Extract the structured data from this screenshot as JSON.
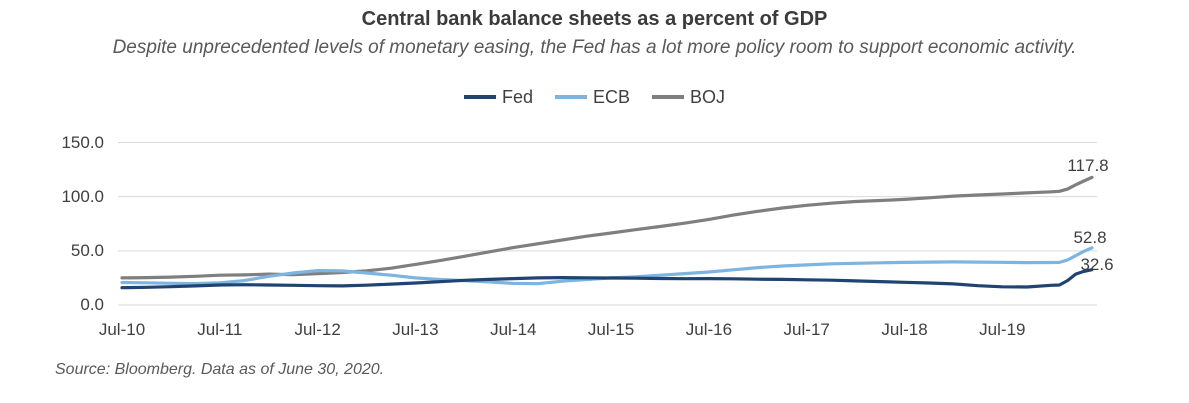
{
  "source_note": "Source: Bloomberg. Data as of June 30, 2020.",
  "colors": {
    "fed_line": "#1f4472",
    "ecb_line": "#7db4e0",
    "boj_line": "#7f7f7f",
    "gridline": "#d9d9d9",
    "title_text": "#3b3b3b",
    "subtitle_text": "#595959",
    "axis_text": "#404040"
  },
  "chart_data": {
    "type": "line",
    "title": "Central bank balance sheets as a percent of GDP",
    "subtitle": "Despite unprecedented levels of monetary easing, the Fed has a lot more policy room to support economic activity.",
    "xlabel": "",
    "ylabel": "",
    "ylim": [
      0,
      150
    ],
    "grid": "horizontal",
    "legend_position": "top-center",
    "x_unit": "months since Jul-2010",
    "x": [
      0,
      3,
      6,
      9,
      12,
      15,
      18,
      21,
      24,
      27,
      30,
      33,
      36,
      39,
      42,
      45,
      48,
      51,
      54,
      57,
      60,
      63,
      66,
      69,
      72,
      75,
      78,
      81,
      84,
      87,
      90,
      93,
      96,
      99,
      102,
      105,
      108,
      111,
      114,
      115,
      116,
      117,
      118,
      119
    ],
    "x_ticks": [
      {
        "label": "Jul-10",
        "month": 0
      },
      {
        "label": "Jul-11",
        "month": 12
      },
      {
        "label": "Jul-12",
        "month": 24
      },
      {
        "label": "Jul-13",
        "month": 36
      },
      {
        "label": "Jul-14",
        "month": 48
      },
      {
        "label": "Jul-15",
        "month": 60
      },
      {
        "label": "Jul-16",
        "month": 72
      },
      {
        "label": "Jul-17",
        "month": 84
      },
      {
        "label": "Jul-18",
        "month": 96
      },
      {
        "label": "Jul-19",
        "month": 108
      }
    ],
    "y_ticks": [
      {
        "label": "0.0",
        "value": 0
      },
      {
        "label": "50.0",
        "value": 50
      },
      {
        "label": "100.0",
        "value": 100
      },
      {
        "label": "150.0",
        "value": 150
      }
    ],
    "series": [
      {
        "name": "Fed",
        "color": "#1f4472",
        "end_label": "32.6",
        "end_value": 32.6,
        "values": [
          16.0,
          16.3,
          16.9,
          17.6,
          18.5,
          18.7,
          18.5,
          18.2,
          17.8,
          17.6,
          18.3,
          19.3,
          20.3,
          21.5,
          22.8,
          23.6,
          24.4,
          25.0,
          25.3,
          25.1,
          24.9,
          24.7,
          24.5,
          24.3,
          24.4,
          24.2,
          23.8,
          23.6,
          23.3,
          22.9,
          22.2,
          21.6,
          21.0,
          20.3,
          19.5,
          17.8,
          16.8,
          16.6,
          18.2,
          18.5,
          22.5,
          28.5,
          31.0,
          32.6
        ]
      },
      {
        "name": "ECB",
        "color": "#7db4e0",
        "end_label": "52.8",
        "end_value": 52.8,
        "values": [
          20.8,
          20.5,
          20.0,
          19.8,
          20.5,
          22.5,
          26.5,
          29.5,
          31.8,
          31.5,
          29.5,
          27.5,
          25.0,
          23.5,
          22.5,
          21.3,
          19.9,
          19.7,
          22.0,
          23.5,
          25.0,
          26.0,
          27.5,
          29.0,
          30.5,
          32.5,
          34.5,
          36.0,
          37.0,
          38.0,
          38.5,
          39.0,
          39.3,
          39.6,
          39.8,
          39.6,
          39.4,
          39.1,
          39.2,
          39.3,
          41.5,
          45.5,
          49.5,
          52.8
        ]
      },
      {
        "name": "BOJ",
        "color": "#7f7f7f",
        "end_label": "117.8",
        "end_value": 117.8,
        "values": [
          25.0,
          25.3,
          25.8,
          26.5,
          27.5,
          27.8,
          28.5,
          28.0,
          29.0,
          30.0,
          31.5,
          34.0,
          37.5,
          41.0,
          45.0,
          49.0,
          53.0,
          56.5,
          60.0,
          63.5,
          66.5,
          69.5,
          72.5,
          75.5,
          79.0,
          83.0,
          86.5,
          89.5,
          92.0,
          94.0,
          95.5,
          96.5,
          97.5,
          99.0,
          100.5,
          101.5,
          102.5,
          103.5,
          104.5,
          105.0,
          107.0,
          111.0,
          114.5,
          117.8
        ]
      }
    ]
  }
}
